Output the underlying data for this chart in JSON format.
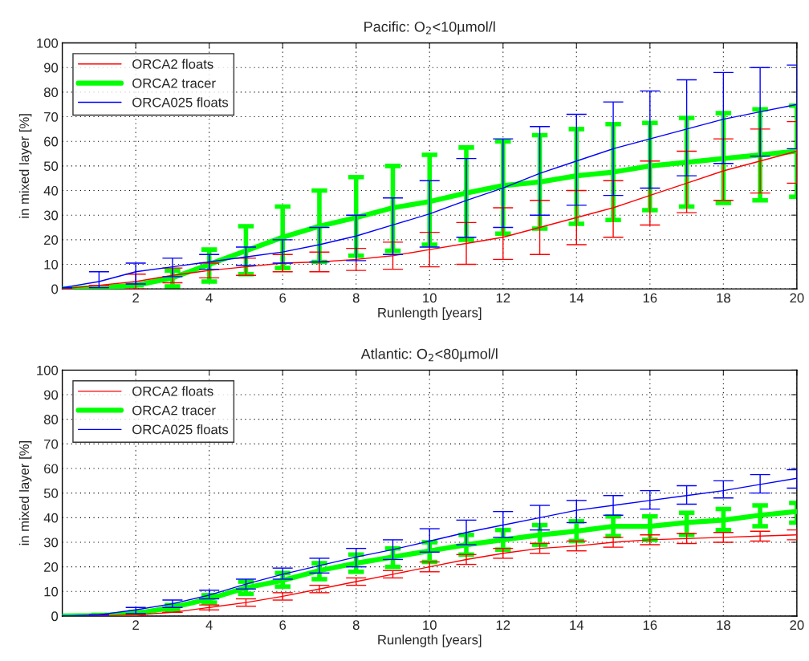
{
  "chart_data": [
    {
      "type": "line",
      "title": "Pacific: O$_{2}$<10µmol/l",
      "xlabel": "Runlength [years]",
      "ylabel": "in mixed layer [%]",
      "xlim": [
        0,
        20
      ],
      "xticks": [
        2,
        4,
        6,
        8,
        10,
        12,
        14,
        16,
        18,
        20
      ],
      "ylim": [
        0,
        100
      ],
      "yticks": [
        0,
        10,
        20,
        30,
        40,
        50,
        60,
        70,
        80,
        90,
        100
      ],
      "grid": true,
      "legend": "top left",
      "x": [
        0,
        1,
        2,
        3,
        4,
        5,
        6,
        7,
        8,
        9,
        10,
        11,
        12,
        13,
        14,
        15,
        16,
        17,
        18,
        19,
        20
      ],
      "series": [
        {
          "name": "ORCA2 floats",
          "color": "#ff0000",
          "values": [
            0,
            1.5,
            3,
            5.5,
            7.5,
            9,
            10.5,
            11,
            12,
            13.5,
            16,
            18.5,
            21,
            25,
            29,
            33,
            38,
            43,
            48,
            52,
            56
          ],
          "errors": [
            null,
            null,
            [
              0,
              6
            ],
            [
              2.5,
              8.5
            ],
            [
              4.5,
              10.5
            ],
            [
              5.5,
              12.5
            ],
            [
              7,
              14
            ],
            [
              7,
              15
            ],
            [
              7.5,
              16.5
            ],
            [
              8,
              19
            ],
            [
              9,
              23
            ],
            [
              10,
              27
            ],
            [
              12,
              33
            ],
            [
              14,
              36
            ],
            [
              18,
              40
            ],
            [
              21,
              44
            ],
            [
              26,
              52
            ],
            [
              31,
              56
            ],
            [
              36,
              61
            ],
            [
              39,
              65
            ],
            [
              43,
              68
            ]
          ]
        },
        {
          "name": "ORCA2 tracer",
          "color": "#00ff00",
          "values": [
            0,
            0.5,
            1.5,
            4.5,
            10,
            15.5,
            21,
            25.5,
            29,
            33,
            35.5,
            39,
            42,
            43.5,
            46,
            47.5,
            50,
            51.5,
            53,
            54.5,
            56
          ],
          "errors": [
            null,
            null,
            null,
            [
              1,
              7.5
            ],
            [
              3,
              16
            ],
            [
              6,
              25.5
            ],
            [
              8.5,
              33.5
            ],
            [
              11,
              40
            ],
            [
              13.5,
              45.5
            ],
            [
              15.5,
              50
            ],
            [
              18,
              54.5
            ],
            [
              20,
              57.5
            ],
            [
              22.5,
              60
            ],
            [
              24.5,
              62.5
            ],
            [
              26.5,
              65
            ],
            [
              28,
              67
            ],
            [
              32,
              67.5
            ],
            [
              33.5,
              69.5
            ],
            [
              35,
              71.5
            ],
            [
              36,
              73
            ],
            [
              37.5,
              74.5
            ]
          ]
        },
        {
          "name": "ORCA025 floats",
          "color": "#0000ff",
          "values": [
            0.5,
            3,
            7,
            9,
            11,
            13,
            15,
            18,
            21.5,
            26,
            30.5,
            36,
            41,
            47,
            52,
            57,
            61,
            65,
            69,
            72,
            75
          ],
          "errors": [
            null,
            [
              0.5,
              7
            ],
            [
              2,
              10.5
            ],
            [
              5,
              12.5
            ],
            [
              8,
              14
            ],
            [
              9.5,
              17
            ],
            [
              10.5,
              20
            ],
            [
              11,
              25
            ],
            [
              11.5,
              30
            ],
            [
              14,
              37
            ],
            [
              17,
              44
            ],
            [
              21,
              53
            ],
            [
              25,
              61
            ],
            [
              30,
              66
            ],
            [
              34,
              71
            ],
            [
              38,
              76
            ],
            [
              41,
              80.5
            ],
            [
              46,
              85
            ],
            [
              51,
              88
            ],
            [
              54,
              90
            ],
            [
              57,
              91
            ]
          ]
        }
      ]
    },
    {
      "type": "line",
      "title": "Atlantic: O$_{2}$<80µmol/l",
      "xlabel": "Runlength [years]",
      "ylabel": "in mixed layer [%]",
      "xlim": [
        0,
        20
      ],
      "xticks": [
        2,
        4,
        6,
        8,
        10,
        12,
        14,
        16,
        18,
        20
      ],
      "ylim": [
        0,
        100
      ],
      "yticks": [
        0,
        10,
        20,
        30,
        40,
        50,
        60,
        70,
        80,
        90,
        100
      ],
      "grid": true,
      "legend": "top left",
      "x": [
        0,
        1,
        2,
        3,
        4,
        5,
        6,
        7,
        8,
        9,
        10,
        11,
        12,
        13,
        14,
        15,
        16,
        17,
        18,
        19,
        20
      ],
      "series": [
        {
          "name": "ORCA2 floats",
          "color": "#ff0000",
          "values": [
            0,
            0,
            0.5,
            1.5,
            3.5,
            5.5,
            8,
            11,
            14,
            17,
            20,
            23,
            25.5,
            27.5,
            28.5,
            30,
            31,
            31.5,
            32,
            32.5,
            33
          ],
          "errors": [
            null,
            null,
            null,
            null,
            [
              2.5,
              4.5
            ],
            [
              4,
              7
            ],
            [
              6.5,
              9.5
            ],
            [
              9.5,
              12.5
            ],
            [
              12.5,
              15.5
            ],
            [
              15.5,
              18.5
            ],
            [
              18,
              22
            ],
            [
              21,
              25
            ],
            [
              23.5,
              27.5
            ],
            [
              25.5,
              29.5
            ],
            [
              26.5,
              30.5
            ],
            [
              28,
              32
            ],
            [
              29,
              33
            ],
            [
              29.5,
              33.5
            ],
            [
              30,
              34
            ],
            [
              30.5,
              34.5
            ],
            [
              31,
              35
            ]
          ]
        },
        {
          "name": "ORCA2 tracer",
          "color": "#00ff00",
          "values": [
            0,
            0.2,
            1,
            3.5,
            7,
            11.5,
            14.5,
            18.5,
            21.5,
            24,
            26.5,
            29,
            31,
            33,
            34.5,
            36.5,
            36.5,
            38,
            39,
            41,
            42.5
          ],
          "errors": [
            [
              0,
              0
            ],
            [
              0,
              0.5
            ],
            [
              0.5,
              1.5
            ],
            [
              2.5,
              4.5
            ],
            [
              5.5,
              8.5
            ],
            [
              9,
              14
            ],
            [
              12,
              17.5
            ],
            [
              15,
              21.5
            ],
            [
              18,
              25
            ],
            [
              20,
              27.5
            ],
            [
              22,
              30
            ],
            [
              25,
              33
            ],
            [
              27,
              35
            ],
            [
              29,
              37
            ],
            [
              30.5,
              38.5
            ],
            [
              32.5,
              40.5
            ],
            [
              31,
              40.5
            ],
            [
              33,
              42
            ],
            [
              35,
              43.5
            ],
            [
              36.5,
              45
            ],
            [
              38,
              46
            ]
          ]
        },
        {
          "name": "ORCA025 floats",
          "color": "#0000ff",
          "values": [
            0,
            0.5,
            2.5,
            5,
            8.5,
            13,
            17,
            20.5,
            24,
            27,
            30.5,
            34,
            37,
            40,
            43,
            45,
            47,
            49,
            51,
            53.5,
            56
          ],
          "errors": [
            null,
            null,
            [
              1,
              3.5
            ],
            [
              3.5,
              6.5
            ],
            [
              7,
              10.5
            ],
            [
              11,
              15
            ],
            [
              15,
              19.5
            ],
            [
              17.5,
              23.5
            ],
            [
              20,
              27.5
            ],
            [
              23,
              31
            ],
            [
              26,
              35.5
            ],
            [
              29,
              39
            ],
            [
              32,
              42.5
            ],
            [
              35,
              45
            ],
            [
              38,
              47
            ],
            [
              41,
              49
            ],
            [
              43.5,
              51
            ],
            [
              45.5,
              53
            ],
            [
              48,
              55
            ],
            [
              50,
              57.5
            ],
            [
              52,
              59.5
            ]
          ]
        }
      ]
    }
  ]
}
